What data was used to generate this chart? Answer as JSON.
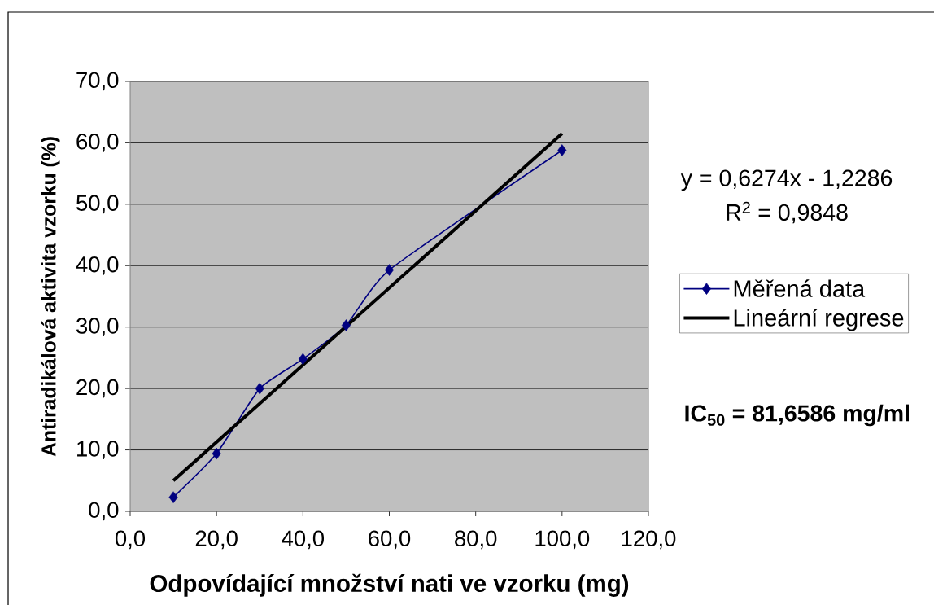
{
  "chart_data": {
    "type": "line",
    "xlabel": "Odpovídající množství nati ve vzorku (mg)",
    "ylabel": "Antiradikálová aktivita vzorku (%)",
    "x": [
      10,
      20,
      30,
      40,
      50,
      60,
      100
    ],
    "series": [
      {
        "name": "Měřená data",
        "color": "#000080",
        "marker": "diamond",
        "values": [
          2.3,
          9.4,
          20.0,
          24.8,
          30.3,
          39.3,
          58.8
        ]
      },
      {
        "name": "Lineární regrese",
        "type": "line",
        "color": "#000000",
        "marker": "none",
        "x": [
          10,
          100
        ],
        "values": [
          5.0,
          61.5
        ]
      }
    ],
    "xlim": [
      0,
      120
    ],
    "ylim": [
      0,
      70
    ],
    "xticks": [
      {
        "value": 0,
        "label": "0,0"
      },
      {
        "value": 20,
        "label": "20,0"
      },
      {
        "value": 40,
        "label": "40,0"
      },
      {
        "value": 60,
        "label": "60,0"
      },
      {
        "value": 80,
        "label": "80,0"
      },
      {
        "value": 100,
        "label": "100,0"
      },
      {
        "value": 120,
        "label": "120,0"
      }
    ],
    "yticks": [
      {
        "value": 0,
        "label": "0,0"
      },
      {
        "value": 10,
        "label": "10,0"
      },
      {
        "value": 20,
        "label": "20,0"
      },
      {
        "value": 30,
        "label": "30,0"
      },
      {
        "value": 40,
        "label": "40,0"
      },
      {
        "value": 50,
        "label": "50,0"
      },
      {
        "value": 60,
        "label": "60,0"
      },
      {
        "value": 70,
        "label": "70,0"
      }
    ],
    "grid": "y",
    "legend": "right",
    "annotations": [
      "y = 0,6274x - 1,2286",
      "R$^{2}$ = 0,9848",
      "IC$_{50}$ = 81,6586 mg/ml"
    ]
  }
}
